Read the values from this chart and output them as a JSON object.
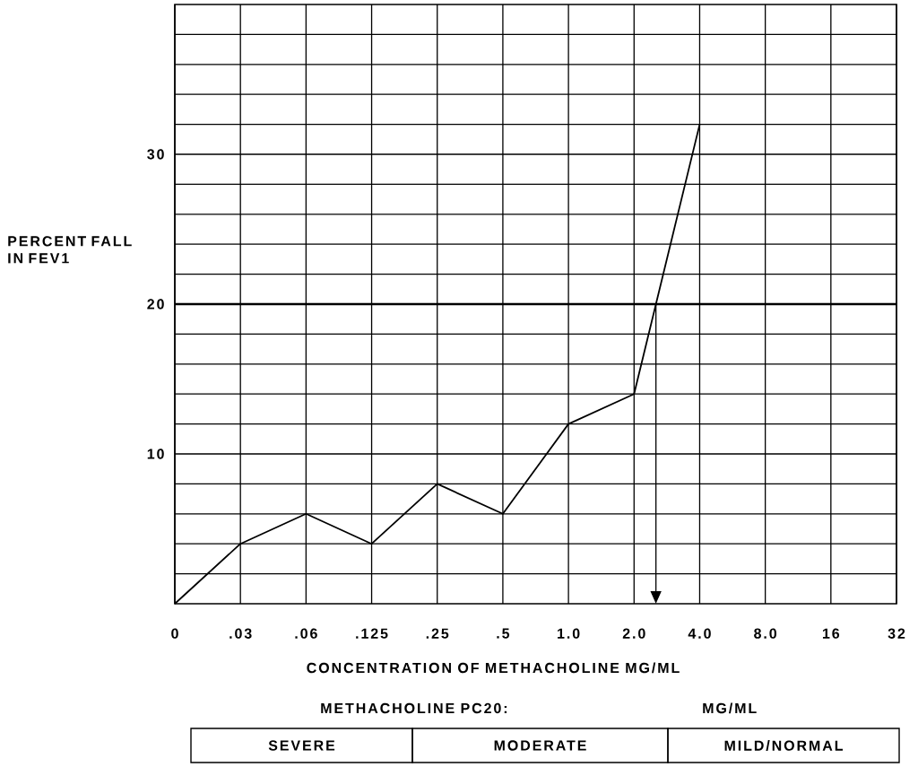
{
  "chart_data": {
    "type": "line",
    "xlabel": "CONCENTRATION OF METHACHOLINE  MG/ML",
    "ylabel": "PERCENT FALL IN FEV1",
    "categories": [
      "0",
      ".03",
      ".06",
      ".125",
      ".25",
      ".5",
      "1.0",
      "2.0",
      "4.0",
      "8.0",
      "16",
      "32"
    ],
    "series": [
      {
        "color": "#000000",
        "values": [
          0,
          4,
          6,
          4,
          8,
          6,
          12,
          14,
          32,
          null,
          null,
          null
        ]
      }
    ],
    "ylim": [
      0,
      40
    ],
    "yticks": [
      {
        "value": 2,
        "label": null
      },
      {
        "value": 4,
        "label": null
      },
      {
        "value": 6,
        "label": null
      },
      {
        "value": 8,
        "label": null
      },
      10,
      {
        "value": 12,
        "label": null
      },
      {
        "value": 14,
        "label": null
      },
      {
        "value": 16,
        "label": null
      },
      {
        "value": 18,
        "label": null
      },
      20,
      {
        "value": 22,
        "label": null
      },
      {
        "value": 24,
        "label": null
      },
      {
        "value": 26,
        "label": null
      },
      {
        "value": 28,
        "label": null
      },
      30,
      {
        "value": 32,
        "label": null
      },
      {
        "value": 34,
        "label": null
      },
      {
        "value": 36,
        "label": null
      },
      {
        "value": 38,
        "label": null
      }
    ],
    "ref_lines": [
      {
        "axis": "y",
        "value": 20,
        "color": "#000000"
      }
    ],
    "grid": true,
    "marker": "none",
    "line_style": "solid",
    "annotations": [
      "METHACHOLINE PC20:",
      "MG/ML",
      "SEVERE",
      "MODERATE",
      "MILD/NORMAL"
    ]
  }
}
